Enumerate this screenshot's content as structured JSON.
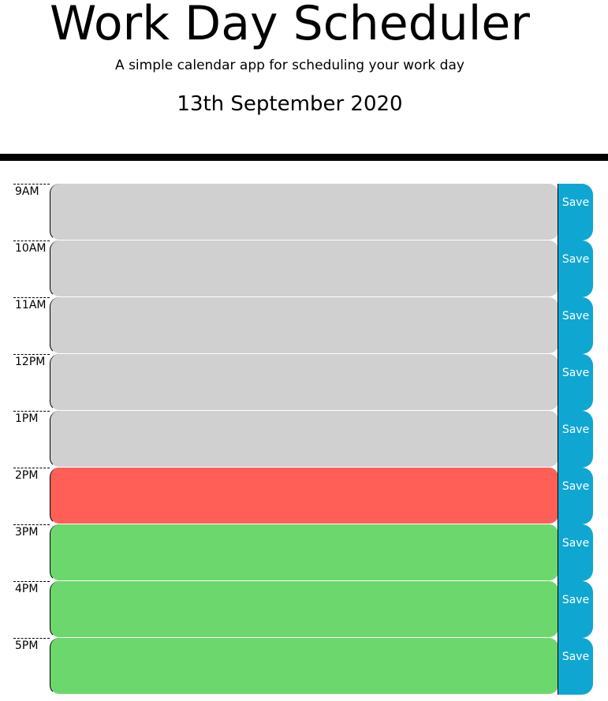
{
  "header": {
    "title": "Work Day Scheduler",
    "subtitle": "A simple calendar app for scheduling your work day",
    "current_date": "13th September 2020"
  },
  "colors": {
    "past": "#d0d0d0",
    "present": "#ff5f57",
    "future": "#6cd76d",
    "save_button": "#0fa7d2"
  },
  "timeblocks": [
    {
      "hour": "9AM",
      "status": "past",
      "text": "",
      "save_label": "Save"
    },
    {
      "hour": "10AM",
      "status": "past",
      "text": "",
      "save_label": "Save"
    },
    {
      "hour": "11AM",
      "status": "past",
      "text": "",
      "save_label": "Save"
    },
    {
      "hour": "12PM",
      "status": "past",
      "text": "",
      "save_label": "Save"
    },
    {
      "hour": "1PM",
      "status": "past",
      "text": "",
      "save_label": "Save"
    },
    {
      "hour": "2PM",
      "status": "present",
      "text": "",
      "save_label": "Save"
    },
    {
      "hour": "3PM",
      "status": "future",
      "text": "",
      "save_label": "Save"
    },
    {
      "hour": "4PM",
      "status": "future",
      "text": "",
      "save_label": "Save"
    },
    {
      "hour": "5PM",
      "status": "future",
      "text": "",
      "save_label": "Save"
    }
  ]
}
